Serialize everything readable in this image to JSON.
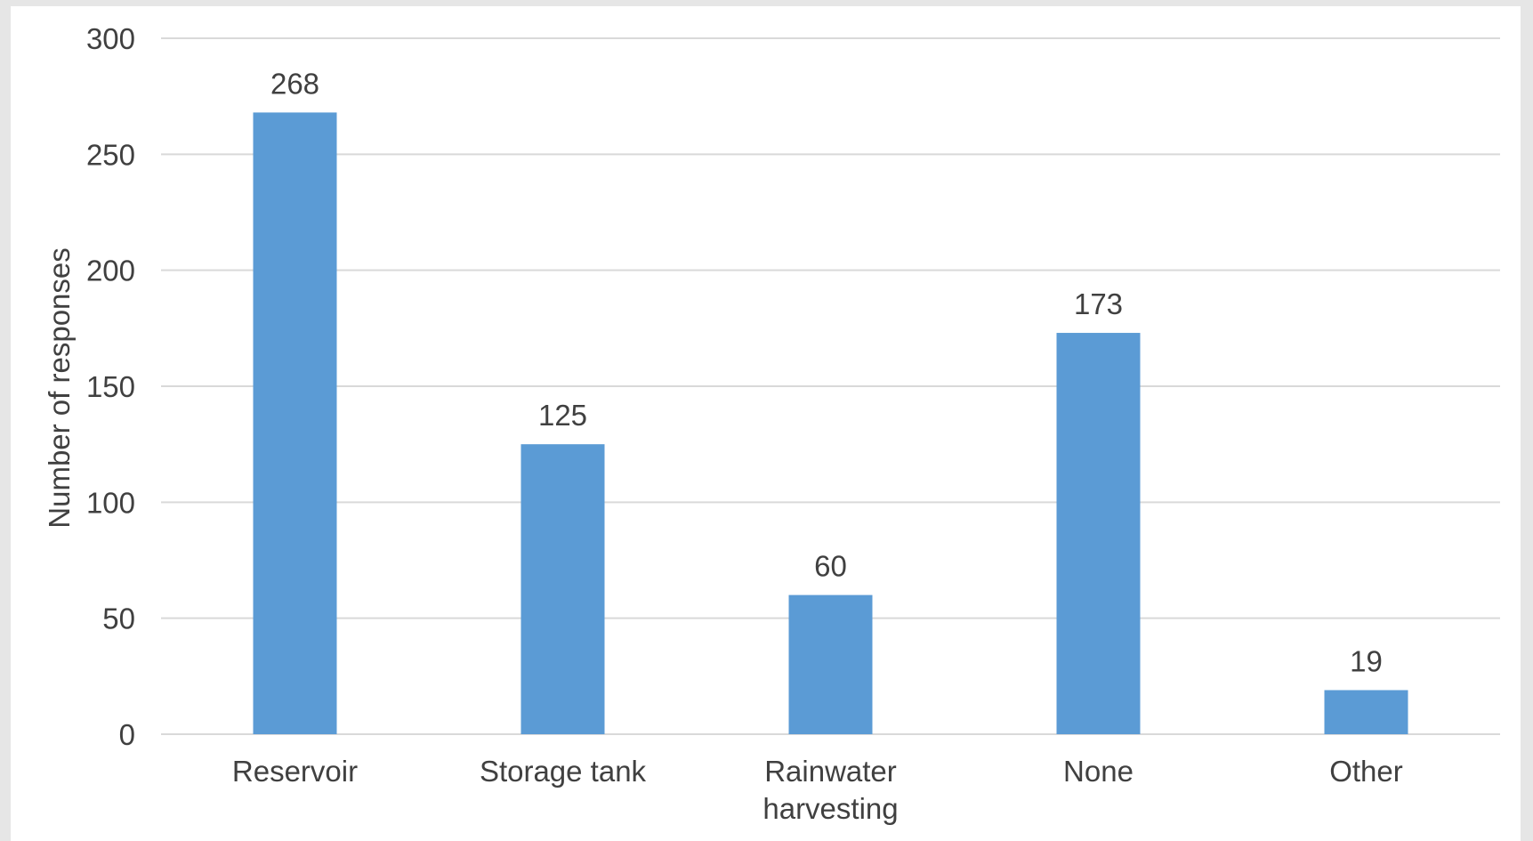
{
  "chart_data": {
    "type": "bar",
    "title": "",
    "xlabel": "",
    "ylabel": "Number of responses",
    "categories": [
      [
        "Reservoir"
      ],
      [
        "Storage tank"
      ],
      [
        "Rainwater",
        "harvesting"
      ],
      [
        "None"
      ],
      [
        "Other"
      ]
    ],
    "values": [
      268,
      125,
      60,
      173,
      19
    ],
    "ylim": [
      0,
      300
    ],
    "yticks": [
      0,
      50,
      100,
      150,
      200,
      250,
      300
    ],
    "grid": true,
    "legend": "none",
    "bar_color": "#5b9bd5",
    "grid_color": "#d9d9d9",
    "text_color": "#404040"
  }
}
